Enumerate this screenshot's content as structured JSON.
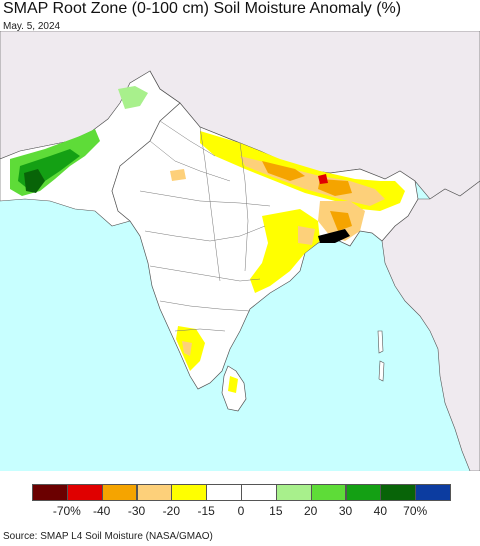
{
  "title": "SMAP Root Zone (0-100 cm) Soil Moisture Anomaly (%)",
  "date": "May. 5, 2024",
  "source": "Source: SMAP L4 Soil Moisture (NASA/GMAO)",
  "colors": {
    "ocean": "#c8ffff",
    "land": "#ffffff",
    "outside": "#efeaef",
    "border": "#555555"
  },
  "legend": {
    "colors": [
      "#6b0000",
      "#e00000",
      "#f5a400",
      "#fdd07a",
      "#ffff00",
      "#ffffff",
      "#ffffff",
      "#a8f08c",
      "#5edc38",
      "#14a014",
      "#086408",
      "#0c3ca0"
    ],
    "ticks": [
      "-70%",
      "-40",
      "-30",
      "-20",
      "-15",
      "0",
      "15",
      "20",
      "30",
      "40",
      "70%"
    ]
  }
}
